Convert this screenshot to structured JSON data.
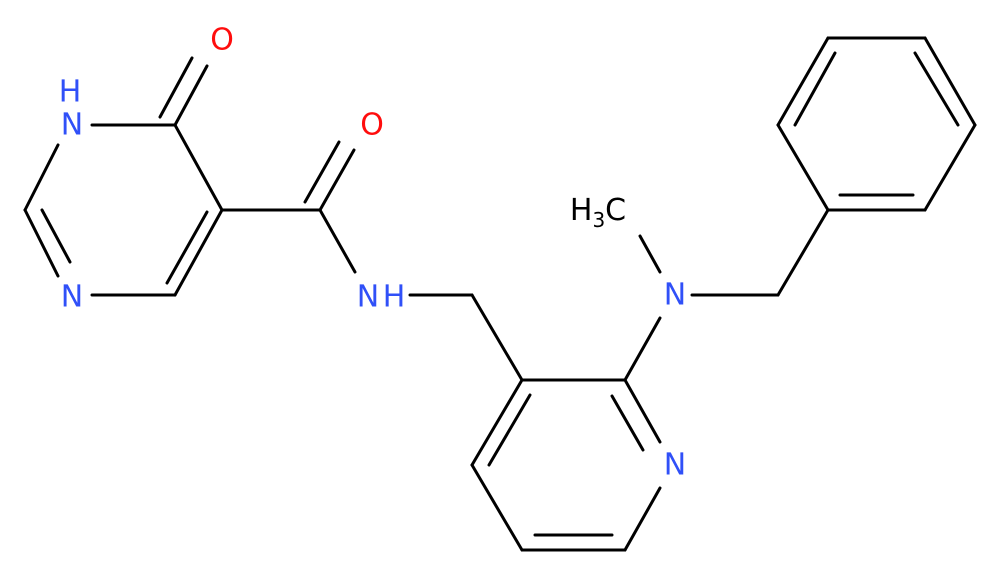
{
  "atoms": [
    {
      "label": "O"
    },
    {
      "label": "H"
    },
    {
      "label": "N"
    },
    {
      "label": "N"
    },
    {
      "label": "O"
    },
    {
      "label": "N"
    },
    {
      "label": "H"
    },
    {
      "label_parts": [
        "H",
        "3",
        "C"
      ]
    },
    {
      "label": "N"
    },
    {
      "label": "N"
    }
  ]
}
